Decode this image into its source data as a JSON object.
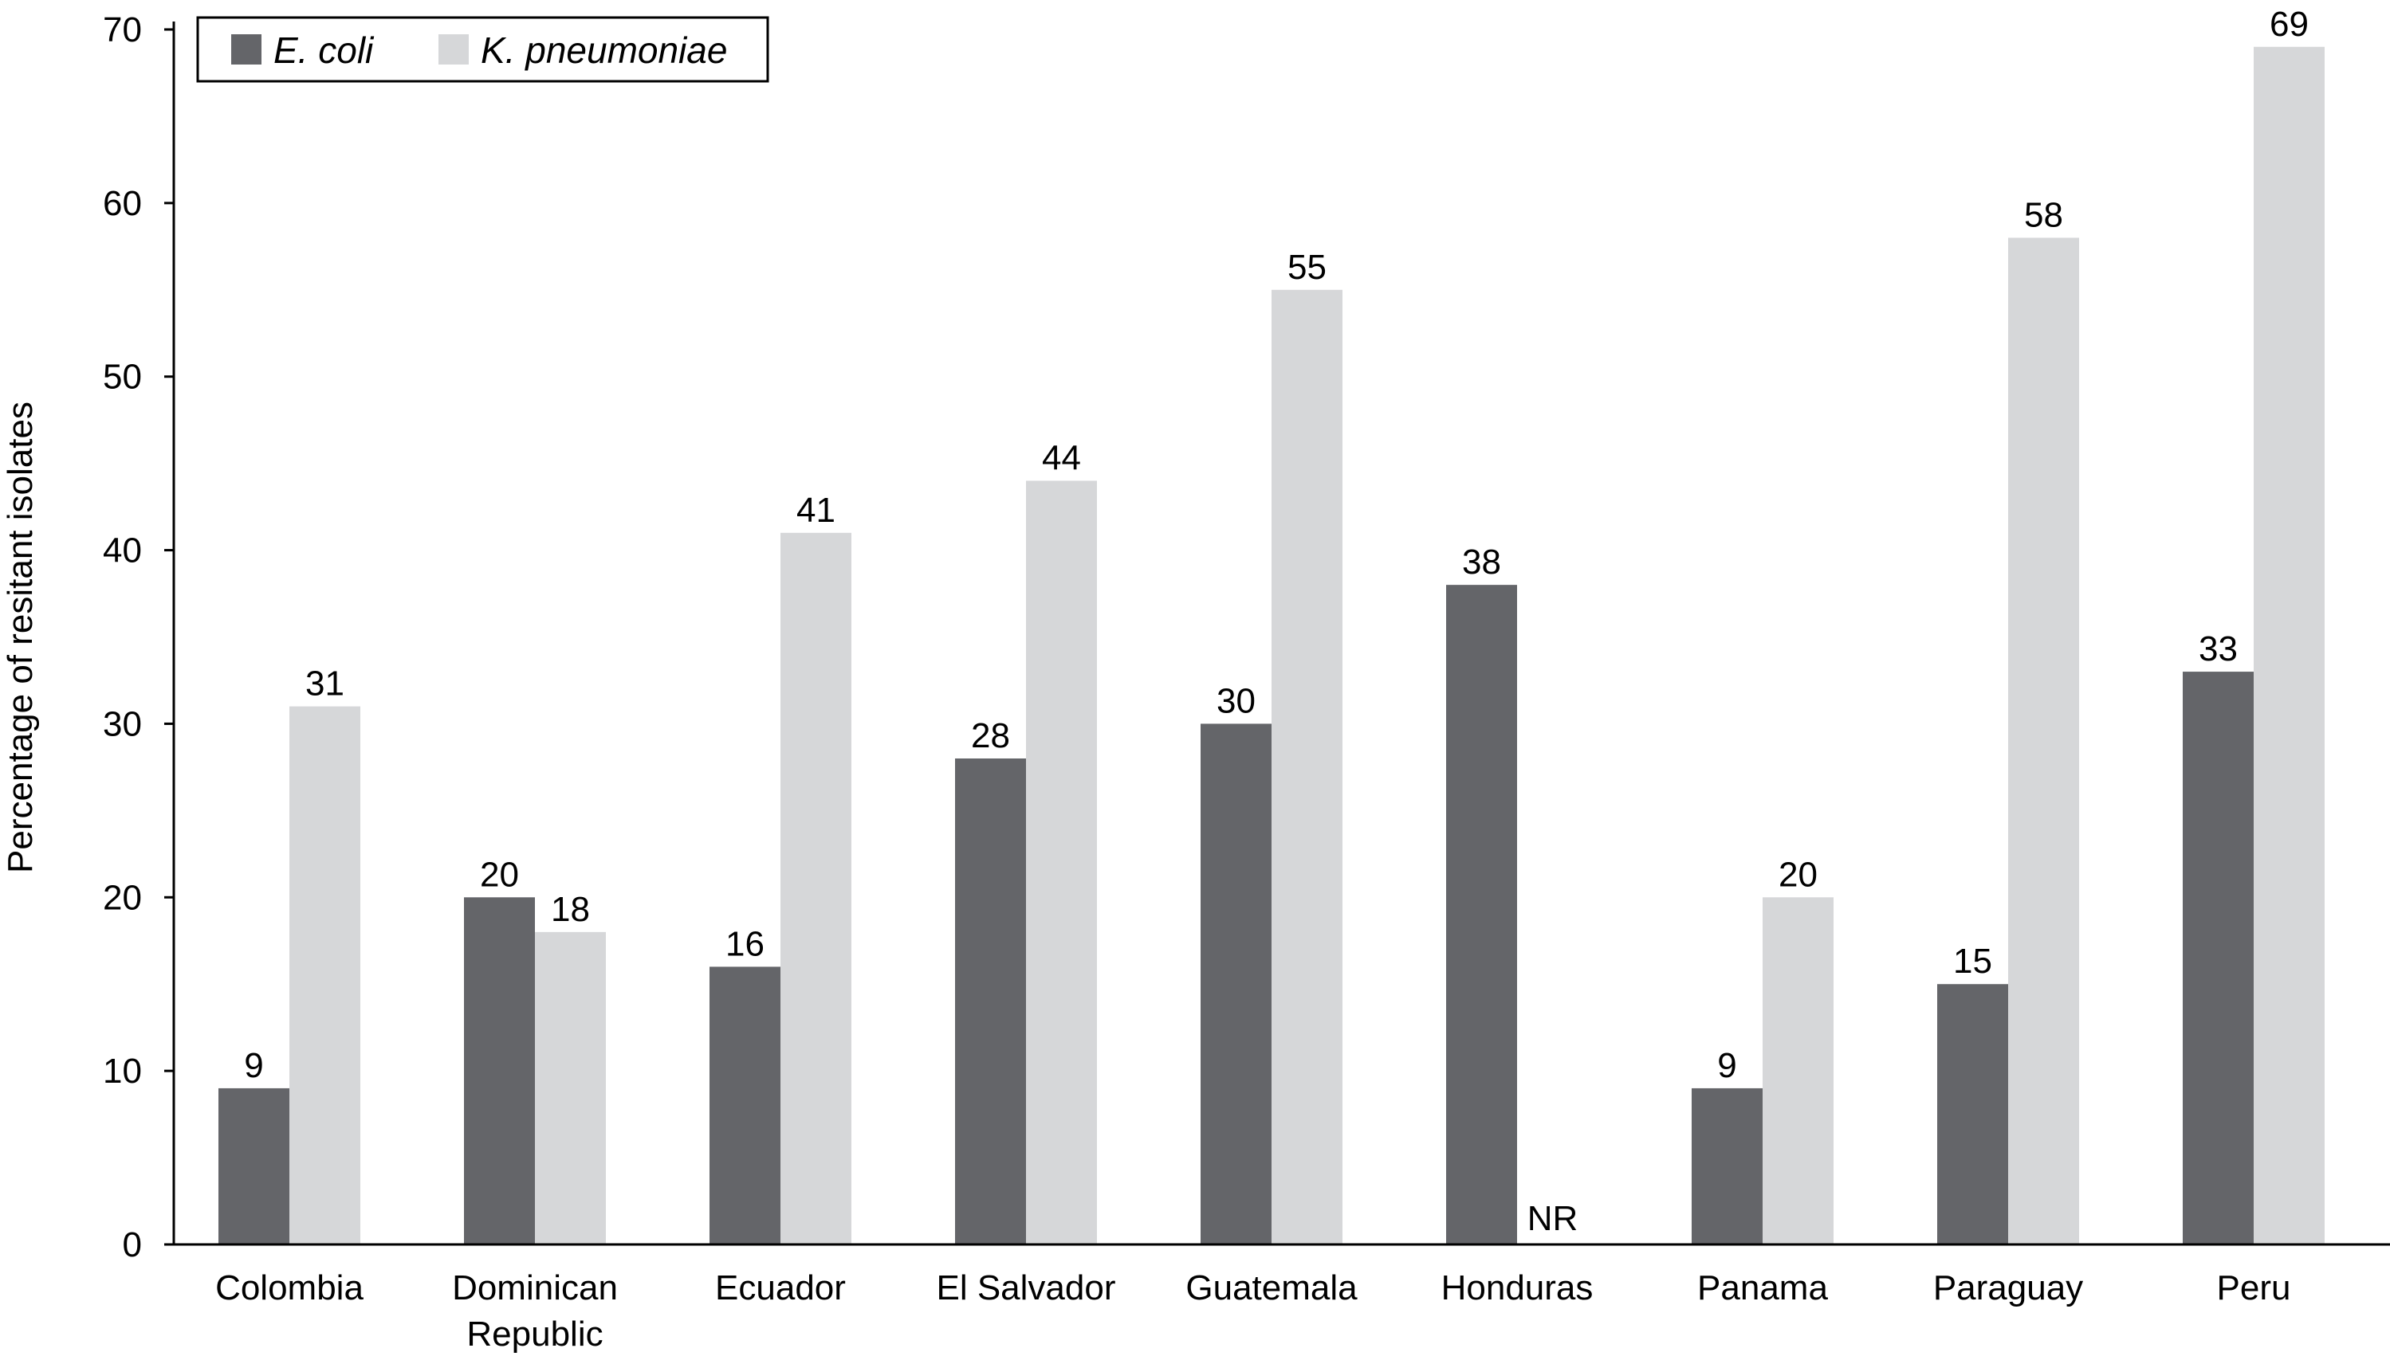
{
  "chart_data": {
    "type": "bar",
    "title": "",
    "xlabel": "",
    "ylabel": "Percentage of resitant isolates",
    "ylim": [
      0,
      70
    ],
    "yticks": [
      0,
      10,
      20,
      30,
      40,
      50,
      60,
      70
    ],
    "grid": false,
    "legend_position": "top-left",
    "categories": [
      [
        "Colombia"
      ],
      [
        "Dominican",
        "Republic"
      ],
      [
        "Ecuador"
      ],
      [
        "El Salvador"
      ],
      [
        "Guatemala"
      ],
      [
        "Honduras"
      ],
      [
        "Panama"
      ],
      [
        "Paraguay"
      ],
      [
        "Peru"
      ]
    ],
    "series": [
      {
        "name": "E. coli",
        "color": "#646569",
        "values": [
          9,
          20,
          16,
          28,
          30,
          38,
          9,
          15,
          33
        ],
        "labels": [
          "9",
          "20",
          "16",
          "28",
          "30",
          "38",
          "9",
          "15",
          "33"
        ]
      },
      {
        "name": "K. pneumoniae",
        "color": "#d6d7d9",
        "values": [
          31,
          18,
          41,
          44,
          55,
          null,
          20,
          58,
          69
        ],
        "labels": [
          "31",
          "18",
          "41",
          "44",
          "55",
          "NR",
          "20",
          "58",
          "69"
        ]
      }
    ]
  }
}
